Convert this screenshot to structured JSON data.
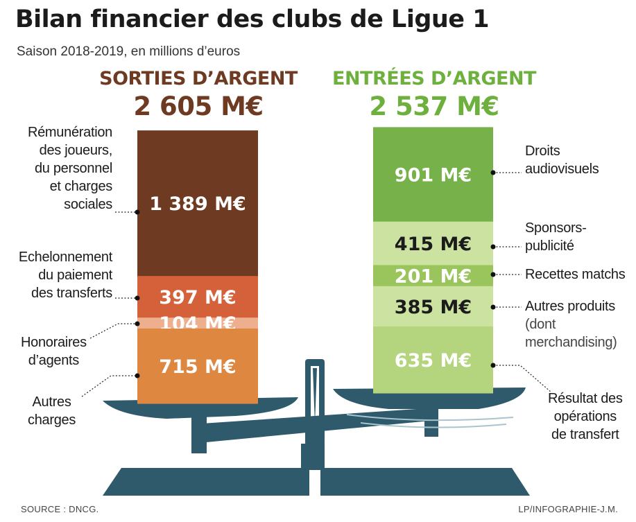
{
  "title": "Bilan financier des clubs de Ligue 1",
  "subtitle": "Saison 2018-2019, en millions d’euros",
  "source": "SOURCE : DNCG.",
  "credit": "LP/INFOGRAPHIE-J.M.",
  "colors": {
    "outflow_heading": "#6e3a22",
    "inflow_heading": "#6db03e",
    "scale": "#2e5a6c"
  },
  "chart_data": {
    "type": "bar",
    "unit": "M€",
    "stacks": [
      {
        "label": "SORTIES D’ARGENT",
        "total_label": "2 605 M€",
        "total": 2605,
        "segments": [
          {
            "category": "Rémunération des joueurs, du personnel et charges sociales",
            "value": 1389,
            "label": "1 389 M€",
            "color": "#6e3a22"
          },
          {
            "category": "Echelonnement du paiement des transferts",
            "value": 397,
            "label": "397 M€",
            "color": "#d4613a"
          },
          {
            "category": "Honoraires d’agents",
            "value": 104,
            "label": "104 M€",
            "color": "#eeaf8e"
          },
          {
            "category": "Autres charges",
            "value": 715,
            "label": "715 M€",
            "color": "#dd8740"
          }
        ]
      },
      {
        "label": "ENTRÉES D’ARGENT",
        "total_label": "2 537 M€",
        "total": 2537,
        "segments": [
          {
            "category": "Droits audiovisuels",
            "value": 901,
            "label": "901 M€",
            "color": "#76b14a"
          },
          {
            "category": "Sponsors-publicité",
            "value": 415,
            "label": "415 M€",
            "color": "#cbe2a0"
          },
          {
            "category": "Recettes matchs",
            "value": 201,
            "label": "201 M€",
            "color": "#9ac45c"
          },
          {
            "category": "Autres produits (dont merchandising)",
            "value": 385,
            "label": "385 M€",
            "color": "#cbe2a0"
          },
          {
            "category": "Résultat des opérations de transfert",
            "value": 635,
            "label": "635 M€",
            "color": "#b4d57d"
          }
        ]
      }
    ]
  },
  "categories_left": [
    [
      "Rémunération",
      "des joueurs,",
      "du personnel",
      "et charges",
      "sociales"
    ],
    [
      "Echelonnement",
      "du paiement",
      "des transferts"
    ],
    [
      "Honoraires",
      "d’agents"
    ],
    [
      "Autres",
      "charges"
    ]
  ],
  "categories_right": [
    [
      "Droits",
      "audiovisuels"
    ],
    [
      "Sponsors-",
      "publicité"
    ],
    [
      "Recettes matchs"
    ],
    [
      "Autres produits"
    ],
    [
      "Résultat des",
      "opérations",
      "de transfert"
    ]
  ],
  "right_sub_lines": [
    "(dont",
    "merchandising)"
  ]
}
